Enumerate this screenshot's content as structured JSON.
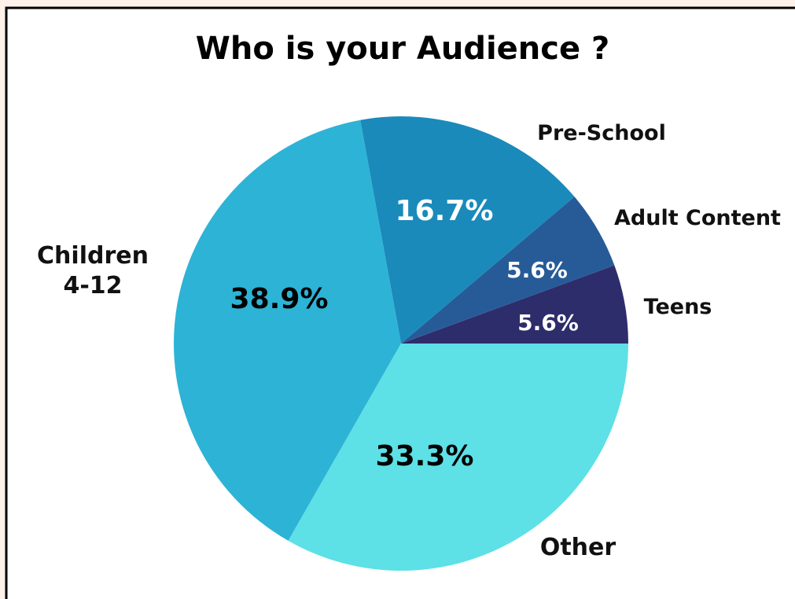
{
  "chart_data": {
    "type": "pie",
    "title": "Who is your Audience ?",
    "categories": [
      "Teens",
      "Adult Content",
      "Pre-School",
      "Children 4-12",
      "Other"
    ],
    "values": [
      5.6,
      5.6,
      16.7,
      38.9,
      33.3
    ],
    "value_labels": [
      "5.6%",
      "5.6%",
      "16.7%",
      "38.9%",
      "33.3%"
    ],
    "colors": [
      "#2e2d6b",
      "#275b98",
      "#1a8abb",
      "#2db3d6",
      "#5de0e6"
    ],
    "label_colors": [
      "#ffffff",
      "#ffffff",
      "#ffffff",
      "#000000",
      "#000000"
    ]
  }
}
